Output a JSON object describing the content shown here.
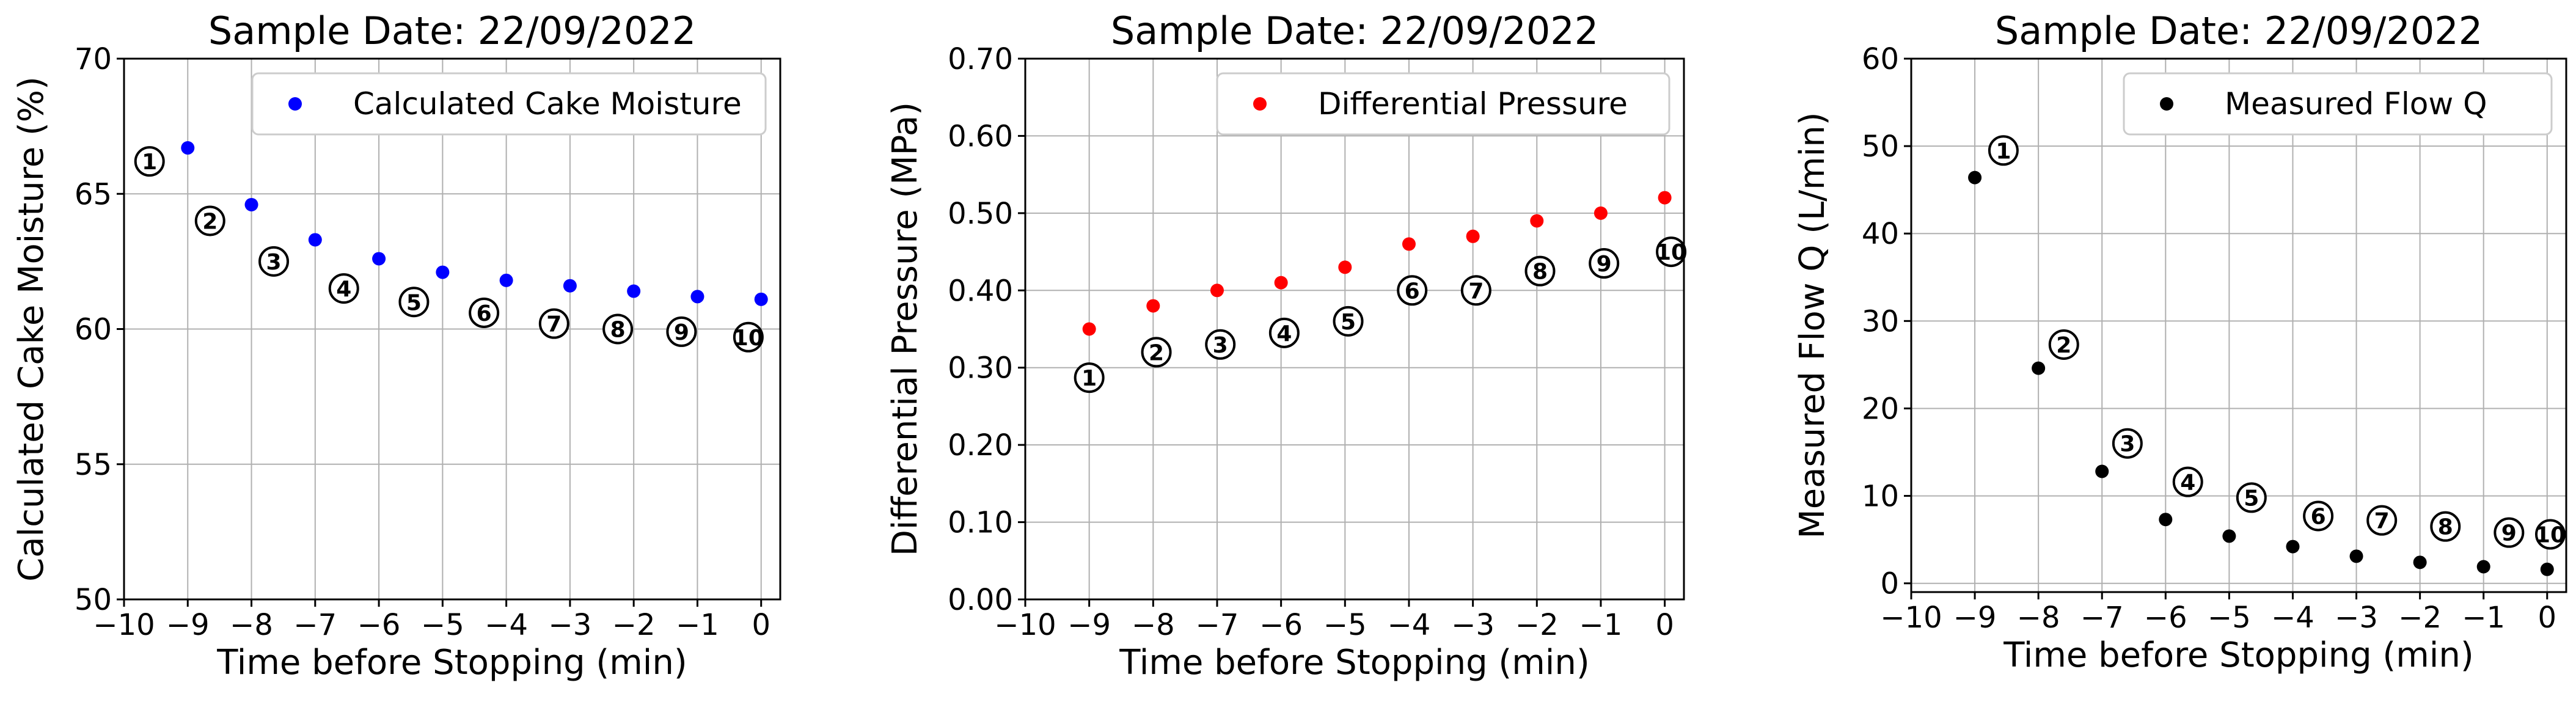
{
  "figure_title": "Sample Date: 22/09/2022",
  "chart_data": [
    {
      "type": "scatter",
      "title": "Sample Date: 22/09/2022",
      "xlabel": "Time before Stopping (min)",
      "ylabel": "Calculated Cake Moisture (%)",
      "xlim": [
        -10,
        0.3
      ],
      "ylim": [
        50,
        70
      ],
      "xticks": [
        -10,
        -9,
        -8,
        -7,
        -6,
        -5,
        -4,
        -3,
        -2,
        -1,
        0
      ],
      "xtick_labels": [
        "−10",
        "−9",
        "−8",
        "−7",
        "−6",
        "−5",
        "−4",
        "−3",
        "−2",
        "−1",
        "0"
      ],
      "yticks": [
        50,
        55,
        60,
        65,
        70
      ],
      "ytick_labels": [
        "50",
        "55",
        "60",
        "65",
        "70"
      ],
      "grid": true,
      "legend_position": "top-right",
      "series": [
        {
          "name": "Calculated Cake Moisture",
          "color": "#0000ff",
          "x": [
            -9,
            -8,
            -7,
            -6,
            -5,
            -4,
            -3,
            -2,
            -1,
            0
          ],
          "y": [
            66.7,
            64.6,
            63.3,
            62.6,
            62.1,
            61.8,
            61.6,
            61.4,
            61.2,
            61.1
          ]
        }
      ],
      "annotations": [
        {
          "label": "1",
          "x": -9.6,
          "y": 66.2
        },
        {
          "label": "2",
          "x": -8.65,
          "y": 64.0
        },
        {
          "label": "3",
          "x": -7.65,
          "y": 62.5
        },
        {
          "label": "4",
          "x": -6.55,
          "y": 61.5
        },
        {
          "label": "5",
          "x": -5.45,
          "y": 61.0
        },
        {
          "label": "6",
          "x": -4.35,
          "y": 60.6
        },
        {
          "label": "7",
          "x": -3.25,
          "y": 60.2
        },
        {
          "label": "8",
          "x": -2.25,
          "y": 60.0
        },
        {
          "label": "9",
          "x": -1.25,
          "y": 59.9
        },
        {
          "label": "10",
          "x": -0.2,
          "y": 59.7
        }
      ]
    },
    {
      "type": "scatter",
      "title": "Sample Date: 22/09/2022",
      "xlabel": "Time before Stopping (min)",
      "ylabel": "Differential Pressure (MPa)",
      "xlim": [
        -10,
        0.3
      ],
      "ylim": [
        0.0,
        0.7
      ],
      "xticks": [
        -10,
        -9,
        -8,
        -7,
        -6,
        -5,
        -4,
        -3,
        -2,
        -1,
        0
      ],
      "xtick_labels": [
        "−10",
        "−9",
        "−8",
        "−7",
        "−6",
        "−5",
        "−4",
        "−3",
        "−2",
        "−1",
        "0"
      ],
      "yticks": [
        0.0,
        0.1,
        0.2,
        0.3,
        0.4,
        0.5,
        0.6,
        0.7
      ],
      "ytick_labels": [
        "0.00",
        "0.10",
        "0.20",
        "0.30",
        "0.40",
        "0.50",
        "0.60",
        "0.70"
      ],
      "grid": true,
      "legend_position": "top-right",
      "series": [
        {
          "name": "Differential Pressure",
          "color": "#ff0000",
          "x": [
            -9,
            -8,
            -7,
            -6,
            -5,
            -4,
            -3,
            -2,
            -1,
            0
          ],
          "y": [
            0.35,
            0.38,
            0.4,
            0.41,
            0.43,
            0.46,
            0.47,
            0.49,
            0.5,
            0.52
          ]
        }
      ],
      "annotations": [
        {
          "label": "1",
          "x": -9.0,
          "y": 0.287
        },
        {
          "label": "2",
          "x": -7.95,
          "y": 0.32
        },
        {
          "label": "3",
          "x": -6.95,
          "y": 0.33
        },
        {
          "label": "4",
          "x": -5.95,
          "y": 0.345
        },
        {
          "label": "5",
          "x": -4.95,
          "y": 0.36
        },
        {
          "label": "6",
          "x": -3.95,
          "y": 0.4
        },
        {
          "label": "7",
          "x": -2.95,
          "y": 0.4
        },
        {
          "label": "8",
          "x": -1.95,
          "y": 0.425
        },
        {
          "label": "9",
          "x": -0.95,
          "y": 0.435
        },
        {
          "label": "10",
          "x": 0.1,
          "y": 0.45
        }
      ]
    },
    {
      "type": "scatter",
      "title": "Sample Date: 22/09/2022",
      "xlabel": "Time before Stopping (min)",
      "ylabel": "Measured Flow Q (L/min)",
      "xlim": [
        -10,
        0.3
      ],
      "ylim": [
        -1,
        60
      ],
      "xticks": [
        -10,
        -9,
        -8,
        -7,
        -6,
        -5,
        -4,
        -3,
        -2,
        -1,
        0
      ],
      "xtick_labels": [
        "−10",
        "−9",
        "−8",
        "−7",
        "−6",
        "−5",
        "−4",
        "−3",
        "−2",
        "−1",
        "0"
      ],
      "yticks": [
        0,
        10,
        20,
        30,
        40,
        50,
        60
      ],
      "ytick_labels": [
        "0",
        "10",
        "20",
        "30",
        "40",
        "50",
        "60"
      ],
      "grid": true,
      "legend_position": "top-right",
      "series": [
        {
          "name": "Measured Flow Q",
          "color": "#000000",
          "x": [
            -9,
            -8,
            -7,
            -6,
            -5,
            -4,
            -3,
            -2,
            -1,
            0
          ],
          "y": [
            46.4,
            24.6,
            12.8,
            7.3,
            5.4,
            4.2,
            3.1,
            2.4,
            1.9,
            1.6
          ]
        }
      ],
      "annotations": [
        {
          "label": "1",
          "x": -8.55,
          "y": 49.5
        },
        {
          "label": "2",
          "x": -7.6,
          "y": 27.3
        },
        {
          "label": "3",
          "x": -6.6,
          "y": 16.0
        },
        {
          "label": "4",
          "x": -5.65,
          "y": 11.6
        },
        {
          "label": "5",
          "x": -4.65,
          "y": 9.8
        },
        {
          "label": "6",
          "x": -3.6,
          "y": 7.7
        },
        {
          "label": "7",
          "x": -2.6,
          "y": 7.2
        },
        {
          "label": "8",
          "x": -1.6,
          "y": 6.5
        },
        {
          "label": "9",
          "x": -0.6,
          "y": 5.8
        },
        {
          "label": "10",
          "x": 0.05,
          "y": 5.6
        }
      ]
    }
  ]
}
